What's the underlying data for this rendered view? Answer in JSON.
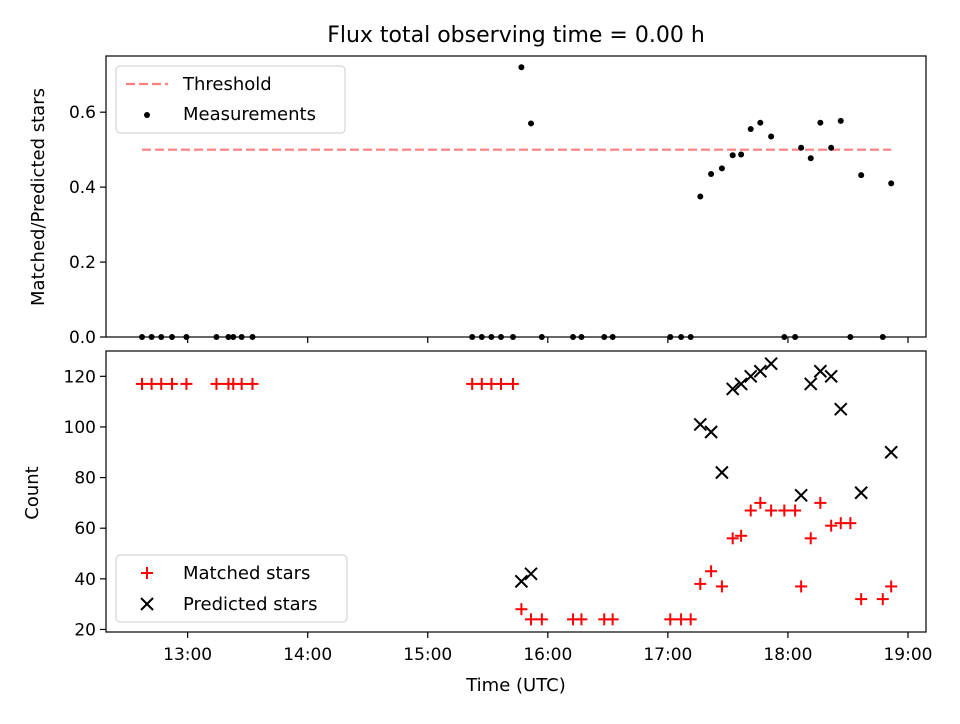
{
  "title": "Flux total observing time = 0.00 h",
  "chart_data": [
    {
      "type": "scatter",
      "panel": "top",
      "title": "Flux total observing time = 0.00 h",
      "xlabel": "",
      "ylabel": "Matched/Predicted stars",
      "xlim": [
        12.32,
        19.15
      ],
      "ylim": [
        0,
        0.75
      ],
      "yticks": [
        0.0,
        0.2,
        0.4,
        0.6
      ],
      "ytick_labels": [
        "0.0",
        "0.2",
        "0.4",
        "0.6"
      ],
      "xticks": [
        13,
        14,
        15,
        16,
        17,
        18,
        19
      ],
      "legend": {
        "placement": "upper-left",
        "entries": [
          "Threshold",
          "Measurements"
        ]
      },
      "threshold": {
        "name": "Threshold",
        "x": [
          12.62,
          18.86
        ],
        "y": 0.5,
        "color": "#ff7f7f",
        "style": "dashed"
      },
      "series": [
        {
          "name": "Measurements",
          "color": "#000000",
          "marker": "dot",
          "points": [
            [
              12.62,
              0.0
            ],
            [
              12.7,
              0.0
            ],
            [
              12.78,
              0.0
            ],
            [
              12.87,
              0.0
            ],
            [
              12.99,
              0.0
            ],
            [
              13.24,
              0.0
            ],
            [
              13.34,
              0.0
            ],
            [
              13.38,
              0.0
            ],
            [
              13.45,
              0.0
            ],
            [
              13.54,
              0.0
            ],
            [
              15.37,
              0.0
            ],
            [
              15.45,
              0.0
            ],
            [
              15.53,
              0.0
            ],
            [
              15.61,
              0.0
            ],
            [
              15.71,
              0.0
            ],
            [
              15.78,
              0.72
            ],
            [
              15.86,
              0.57
            ],
            [
              15.95,
              0.0
            ],
            [
              16.21,
              0.0
            ],
            [
              16.28,
              0.0
            ],
            [
              16.47,
              0.0
            ],
            [
              16.54,
              0.0
            ],
            [
              17.02,
              0.0
            ],
            [
              17.11,
              0.0
            ],
            [
              17.19,
              0.0
            ],
            [
              17.27,
              0.375
            ],
            [
              17.36,
              0.435
            ],
            [
              17.45,
              0.45
            ],
            [
              17.54,
              0.485
            ],
            [
              17.61,
              0.487
            ],
            [
              17.69,
              0.555
            ],
            [
              17.77,
              0.572
            ],
            [
              17.86,
              0.535
            ],
            [
              17.97,
              0.0
            ],
            [
              18.06,
              0.0
            ],
            [
              18.11,
              0.505
            ],
            [
              18.19,
              0.477
            ],
            [
              18.27,
              0.572
            ],
            [
              18.36,
              0.505
            ],
            [
              18.44,
              0.577
            ],
            [
              18.52,
              0.0
            ],
            [
              18.61,
              0.432
            ],
            [
              18.79,
              0.0
            ],
            [
              18.86,
              0.41
            ]
          ]
        }
      ]
    },
    {
      "type": "scatter",
      "panel": "bottom",
      "xlabel": "Time (UTC)",
      "ylabel": "Count",
      "xlim": [
        12.32,
        19.15
      ],
      "ylim": [
        19,
        130
      ],
      "yticks": [
        20,
        40,
        60,
        80,
        100,
        120
      ],
      "xticks": [
        13,
        14,
        15,
        16,
        17,
        18,
        19
      ],
      "xtick_labels": [
        "13:00",
        "14:00",
        "15:00",
        "16:00",
        "17:00",
        "18:00",
        "19:00"
      ],
      "legend": {
        "placement": "lower-left",
        "entries": [
          "Matched stars",
          "Predicted stars"
        ]
      },
      "series": [
        {
          "name": "Matched stars",
          "color": "#ff0000",
          "marker": "plus",
          "points": [
            [
              12.62,
              117
            ],
            [
              12.7,
              117
            ],
            [
              12.78,
              117
            ],
            [
              12.87,
              117
            ],
            [
              12.99,
              117
            ],
            [
              13.24,
              117
            ],
            [
              13.34,
              117
            ],
            [
              13.38,
              117
            ],
            [
              13.45,
              117
            ],
            [
              13.54,
              117
            ],
            [
              15.37,
              117
            ],
            [
              15.45,
              117
            ],
            [
              15.53,
              117
            ],
            [
              15.61,
              117
            ],
            [
              15.71,
              117
            ],
            [
              15.78,
              28
            ],
            [
              15.86,
              24
            ],
            [
              15.95,
              24
            ],
            [
              16.21,
              24
            ],
            [
              16.28,
              24
            ],
            [
              16.47,
              24
            ],
            [
              16.54,
              24
            ],
            [
              17.02,
              24
            ],
            [
              17.11,
              24
            ],
            [
              17.19,
              24
            ],
            [
              17.27,
              38
            ],
            [
              17.36,
              43
            ],
            [
              17.45,
              37
            ],
            [
              17.54,
              56
            ],
            [
              17.61,
              57
            ],
            [
              17.69,
              67
            ],
            [
              17.77,
              70
            ],
            [
              17.86,
              67
            ],
            [
              17.97,
              67
            ],
            [
              18.06,
              67
            ],
            [
              18.11,
              37
            ],
            [
              18.19,
              56
            ],
            [
              18.27,
              70
            ],
            [
              18.36,
              61
            ],
            [
              18.44,
              62
            ],
            [
              18.52,
              62
            ],
            [
              18.61,
              32
            ],
            [
              18.79,
              32
            ],
            [
              18.86,
              37
            ]
          ]
        },
        {
          "name": "Predicted stars",
          "color": "#000000",
          "marker": "x",
          "points": [
            [
              15.78,
              39
            ],
            [
              15.86,
              42
            ],
            [
              17.27,
              101
            ],
            [
              17.36,
              98
            ],
            [
              17.45,
              82
            ],
            [
              17.54,
              115
            ],
            [
              17.61,
              117
            ],
            [
              17.69,
              120
            ],
            [
              17.77,
              122
            ],
            [
              17.86,
              125
            ],
            [
              18.11,
              73
            ],
            [
              18.19,
              117
            ],
            [
              18.27,
              122
            ],
            [
              18.36,
              120
            ],
            [
              18.44,
              107
            ],
            [
              18.61,
              74
            ],
            [
              18.86,
              90
            ]
          ]
        }
      ]
    }
  ]
}
